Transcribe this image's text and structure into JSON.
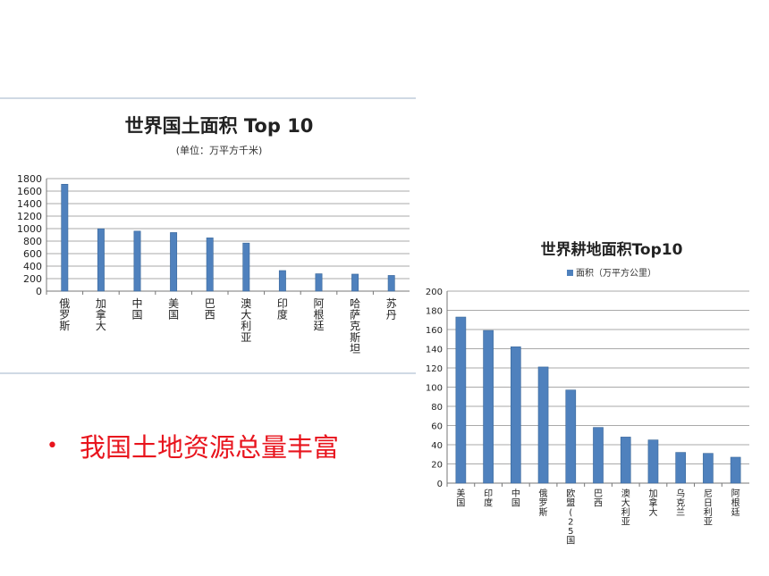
{
  "bullet": {
    "dot": "•",
    "text": "我国土地资源总量丰富"
  },
  "chart_data": [
    {
      "type": "bar",
      "title": "世界国土面积 Top 10",
      "subtitle": "(单位：万平方千米)",
      "categories": [
        "俄罗斯",
        "加拿大",
        "中国",
        "美国",
        "巴西",
        "澳大利亚",
        "印度",
        "阿根廷",
        "哈萨克斯坦",
        "苏丹"
      ],
      "values": [
        1710,
        998,
        960,
        937,
        852,
        769,
        329,
        278,
        272,
        251
      ],
      "ylim": [
        0,
        1800
      ],
      "yticks": [
        0,
        200,
        400,
        600,
        800,
        1000,
        1200,
        1400,
        1600,
        1800
      ],
      "grid": true,
      "bar_color": "#4f81bd"
    },
    {
      "type": "bar",
      "title": "世界耕地面积Top10",
      "legend": "面积（万平方公里）",
      "categories": [
        "美国",
        "印度",
        "中国",
        "俄罗斯",
        "欧盟(25国)",
        "巴西",
        "澳大利亚",
        "加拿大",
        "乌克兰",
        "尼日利亚",
        "阿根廷"
      ],
      "values": [
        173,
        159,
        142,
        121,
        97,
        58,
        48,
        45,
        32,
        31,
        27
      ],
      "ylim": [
        0,
        200
      ],
      "yticks": [
        0,
        20,
        40,
        60,
        80,
        100,
        120,
        140,
        160,
        180,
        200
      ],
      "grid": true,
      "bar_color": "#4f81bd"
    }
  ]
}
